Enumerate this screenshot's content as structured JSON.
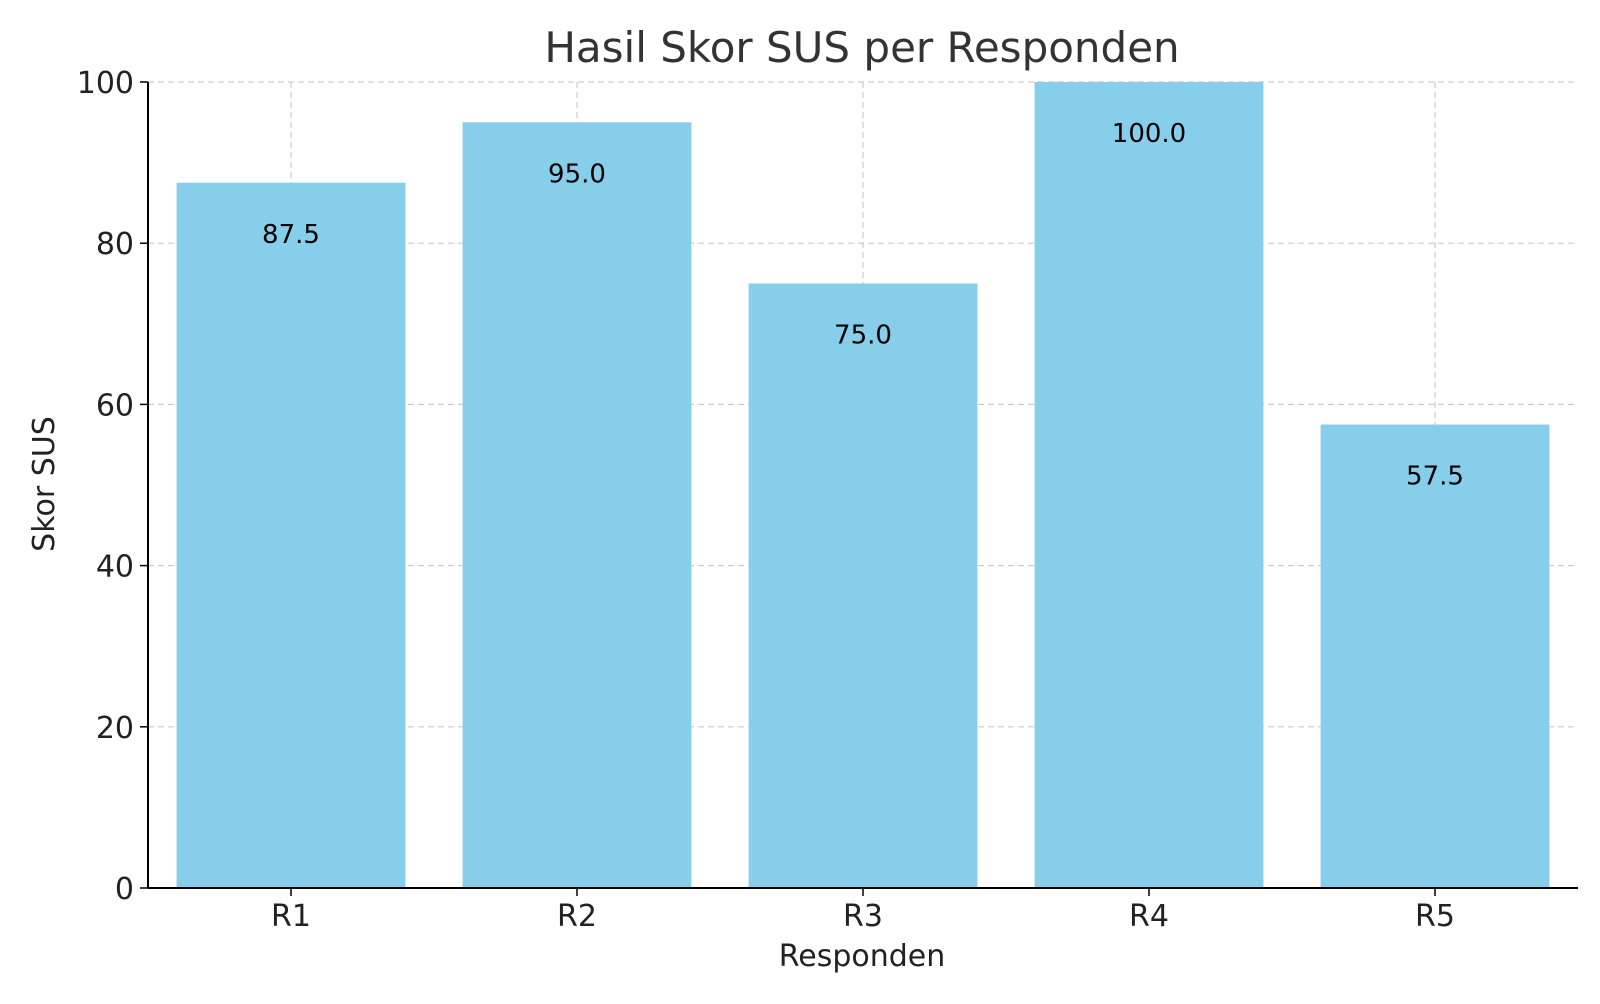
{
  "chart_data": {
    "type": "bar",
    "title": "Hasil Skor SUS per Responden",
    "xlabel": "Responden",
    "ylabel": "Skor SUS",
    "categories": [
      "R1",
      "R2",
      "R3",
      "R4",
      "R5"
    ],
    "values": [
      87.5,
      95.0,
      75.0,
      100.0,
      57.5
    ],
    "value_labels": [
      "87.5",
      "95.0",
      "75.0",
      "100.0",
      "57.5"
    ],
    "ylim": [
      0,
      100
    ],
    "yticks": [
      0,
      20,
      40,
      60,
      80,
      100
    ],
    "grid": true,
    "bar_color": "#87CEEB",
    "grid_color": "#cccccc",
    "axis_color": "#000000"
  }
}
